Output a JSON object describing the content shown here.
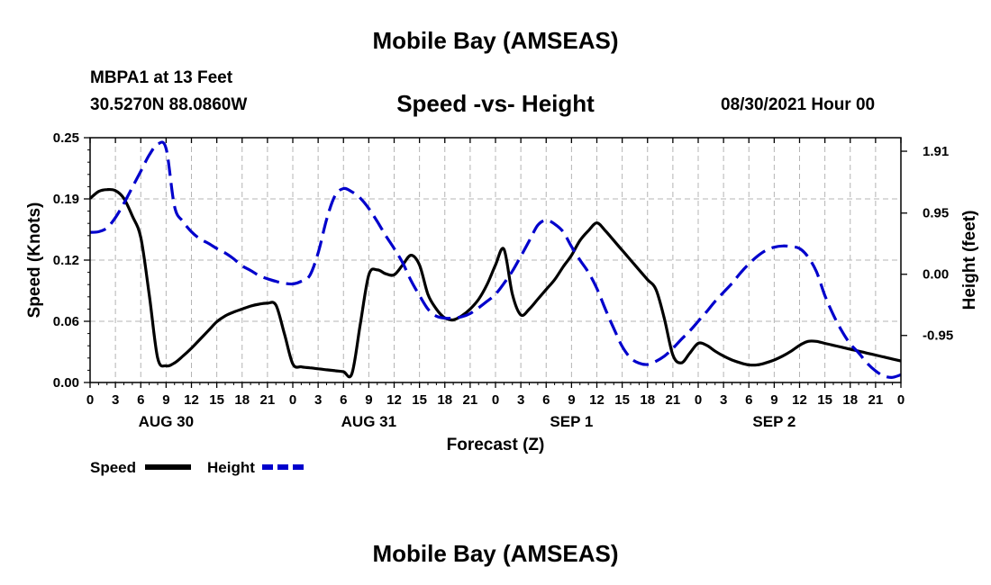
{
  "header": {
    "title": "Mobile Bay (AMSEAS)",
    "station": "MBPA1 at 13 Feet",
    "coords": "30.5270N  88.0860W",
    "subtitle": "Speed -vs- Height",
    "datetime": "08/30/2021 Hour 00"
  },
  "footer": {
    "title": "Mobile Bay (AMSEAS)"
  },
  "colors": {
    "speed": "#000000",
    "height": "#0000cc",
    "grid": "#b4b4b4",
    "axis": "#000000"
  },
  "chart_data": {
    "type": "line",
    "title": "Speed -vs- Height",
    "xlabel": "Forecast (Z)",
    "ylabel": "Speed (Knots)",
    "y2label": "Height (feet)",
    "xlim": [
      0,
      96
    ],
    "ylim": [
      0,
      0.25
    ],
    "y2lim": [
      -1.68,
      2.12
    ],
    "grid": true,
    "x_tick_step": 3,
    "x_tick_labels": [
      "0",
      "3",
      "6",
      "9",
      "12",
      "15",
      "18",
      "21",
      "0",
      "3",
      "6",
      "9",
      "12",
      "15",
      "18",
      "21",
      "0",
      "3",
      "6",
      "9",
      "12",
      "15",
      "18",
      "21",
      "0",
      "3",
      "6",
      "9",
      "12",
      "15",
      "18",
      "21",
      "0"
    ],
    "date_labels": [
      {
        "x": 9,
        "label": "AUG 30"
      },
      {
        "x": 33,
        "label": "AUG 31"
      },
      {
        "x": 57,
        "label": "SEP 1"
      },
      {
        "x": 81,
        "label": "SEP 2"
      }
    ],
    "y_ticks": [
      "0.00",
      "0.06",
      "0.12",
      "0.19",
      "0.25"
    ],
    "y_tick_values": [
      0.0,
      0.0625,
      0.125,
      0.1875,
      0.25
    ],
    "y2_ticks": [
      "1.91",
      "0.95",
      "0.00",
      "-0.95"
    ],
    "y2_tick_values": [
      1.91,
      0.95,
      0.0,
      -0.95
    ],
    "legend": [
      {
        "name": "Speed",
        "style": "solid"
      },
      {
        "name": "Height",
        "style": "dashed"
      }
    ],
    "legend_position": "below-left",
    "series": [
      {
        "name": "Speed",
        "axis": "left",
        "style": "solid",
        "x": [
          0,
          1,
          2,
          3,
          4,
          5,
          6,
          7,
          8,
          9,
          10,
          11,
          12,
          13,
          14,
          15,
          16,
          17,
          18,
          19,
          20,
          21,
          22,
          23,
          24,
          25,
          26,
          27,
          28,
          29,
          30,
          31,
          32,
          33,
          34,
          35,
          36,
          37,
          38,
          39,
          40,
          41,
          42,
          43,
          44,
          45,
          46,
          47,
          48,
          49,
          50,
          51,
          52,
          53,
          54,
          55,
          56,
          57,
          58,
          59,
          60,
          61,
          62,
          63,
          64,
          65,
          66,
          67,
          68,
          69,
          70,
          71,
          72,
          73,
          74,
          75,
          76,
          77,
          78,
          79,
          80,
          81,
          82,
          83,
          84,
          85,
          86,
          87,
          88,
          89,
          90,
          91,
          92,
          93,
          94,
          95,
          96
        ],
        "values": [
          0.188,
          0.195,
          0.197,
          0.196,
          0.188,
          0.17,
          0.148,
          0.09,
          0.025,
          0.017,
          0.02,
          0.027,
          0.035,
          0.044,
          0.053,
          0.062,
          0.068,
          0.072,
          0.075,
          0.078,
          0.08,
          0.081,
          0.079,
          0.05,
          0.019,
          0.016,
          0.015,
          0.014,
          0.013,
          0.012,
          0.011,
          0.009,
          0.06,
          0.11,
          0.115,
          0.111,
          0.11,
          0.12,
          0.13,
          0.12,
          0.09,
          0.075,
          0.066,
          0.064,
          0.068,
          0.075,
          0.085,
          0.1,
          0.12,
          0.136,
          0.09,
          0.069,
          0.075,
          0.085,
          0.095,
          0.105,
          0.118,
          0.13,
          0.145,
          0.155,
          0.163,
          0.155,
          0.145,
          0.135,
          0.125,
          0.115,
          0.105,
          0.095,
          0.065,
          0.028,
          0.02,
          0.03,
          0.04,
          0.038,
          0.032,
          0.027,
          0.023,
          0.02,
          0.018,
          0.018,
          0.02,
          0.023,
          0.027,
          0.032,
          0.038,
          0.042,
          0.042,
          0.04,
          0.038,
          0.036,
          0.034,
          0.032,
          0.03,
          0.028,
          0.026,
          0.024,
          0.022
        ]
      },
      {
        "name": "Height",
        "axis": "right",
        "style": "dashed",
        "x": [
          0,
          1,
          2,
          3,
          4,
          5,
          6,
          7,
          8,
          9,
          10,
          11,
          12,
          13,
          14,
          15,
          16,
          17,
          18,
          19,
          20,
          21,
          22,
          23,
          24,
          25,
          26,
          27,
          28,
          29,
          30,
          31,
          32,
          33,
          34,
          35,
          36,
          37,
          38,
          39,
          40,
          41,
          42,
          43,
          44,
          45,
          46,
          47,
          48,
          49,
          50,
          51,
          52,
          53,
          54,
          55,
          56,
          57,
          58,
          59,
          60,
          61,
          62,
          63,
          64,
          65,
          66,
          67,
          68,
          69,
          70,
          71,
          72,
          73,
          74,
          75,
          76,
          77,
          78,
          79,
          80,
          81,
          82,
          83,
          84,
          85,
          86,
          87,
          88,
          89,
          90,
          91,
          92,
          93,
          94,
          95,
          96
        ],
        "values": [
          0.65,
          0.66,
          0.72,
          0.88,
          1.1,
          1.35,
          1.6,
          1.85,
          2.02,
          1.95,
          1.05,
          0.82,
          0.66,
          0.55,
          0.48,
          0.4,
          0.33,
          0.24,
          0.13,
          0.06,
          -0.02,
          -0.07,
          -0.11,
          -0.14,
          -0.15,
          -0.11,
          -0.02,
          0.33,
          0.85,
          1.22,
          1.33,
          1.28,
          1.18,
          1.02,
          0.82,
          0.6,
          0.4,
          0.18,
          -0.1,
          -0.33,
          -0.54,
          -0.65,
          -0.68,
          -0.68,
          -0.66,
          -0.61,
          -0.52,
          -0.42,
          -0.31,
          -0.14,
          0.05,
          0.28,
          0.52,
          0.76,
          0.84,
          0.78,
          0.66,
          0.43,
          0.22,
          0.03,
          -0.22,
          -0.54,
          -0.84,
          -1.12,
          -1.3,
          -1.38,
          -1.4,
          -1.35,
          -1.27,
          -1.15,
          -1.01,
          -0.88,
          -0.73,
          -0.58,
          -0.42,
          -0.28,
          -0.14,
          0.02,
          0.16,
          0.28,
          0.37,
          0.42,
          0.44,
          0.43,
          0.4,
          0.27,
          0.04,
          -0.33,
          -0.63,
          -0.88,
          -1.08,
          -1.22,
          -1.38,
          -1.5,
          -1.58,
          -1.6,
          -1.56
        ]
      }
    ]
  }
}
